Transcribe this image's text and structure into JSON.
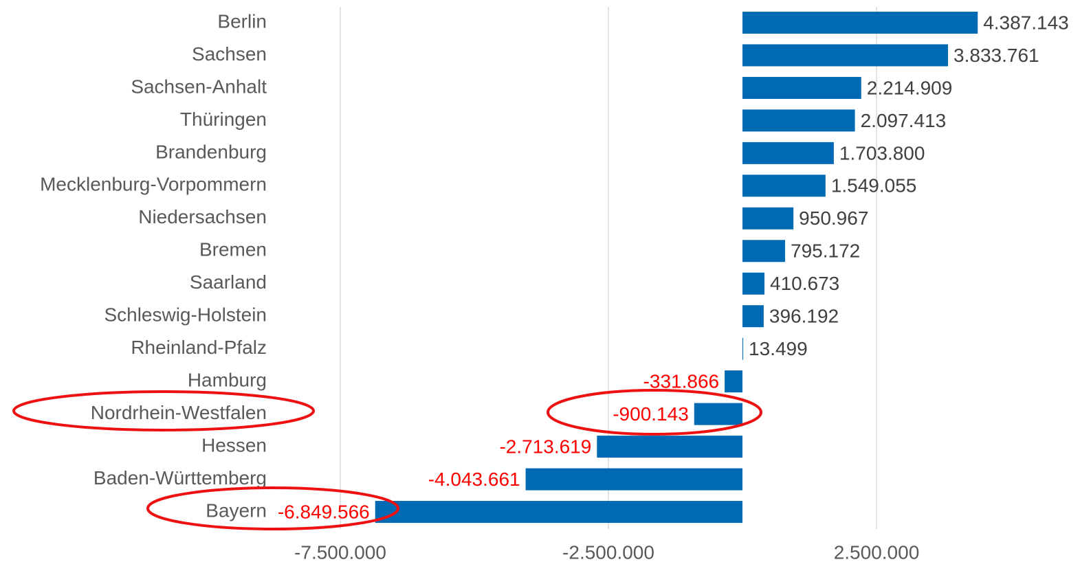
{
  "chart_data": {
    "type": "barh",
    "categories": [
      "Berlin",
      "Sachsen",
      "Sachsen-Anhalt",
      "Thüringen",
      "Brandenburg",
      "Mecklenburg-Vorpommern",
      "Niedersachsen",
      "Bremen",
      "Saarland",
      "Schleswig-Holstein",
      "Rheinland-Pfalz",
      "Hamburg",
      "Nordrhein-Westfalen",
      "Hessen",
      "Baden-Württemberg",
      "Bayern"
    ],
    "values": [
      4387143,
      3833761,
      2214909,
      2097413,
      1703800,
      1549055,
      950967,
      795172,
      410673,
      396192,
      13499,
      -331866,
      -900143,
      -2713619,
      -4043661,
      -6849566
    ],
    "value_labels": [
      "4.387.143",
      "3.833.761",
      "2.214.909",
      "2.097.413",
      "1.703.800",
      "1.549.055",
      "950.967",
      "795.172",
      "410.673",
      "396.192",
      "13.499",
      "-331.866",
      "-900.143",
      "-2.713.619",
      "-4.043.661",
      "-6.849.566"
    ],
    "color": "#0069b4",
    "positive_label_color": "#404040",
    "negative_label_color": "#ff0000",
    "xlim": [
      -7500000,
      6500000
    ],
    "xticks": [
      {
        "value": -7500000,
        "label": "-7.500.000"
      },
      {
        "value": -2500000,
        "label": "-2.500.000"
      },
      {
        "value": 2500000,
        "label": "2.500.000"
      }
    ],
    "grid": true
  }
}
